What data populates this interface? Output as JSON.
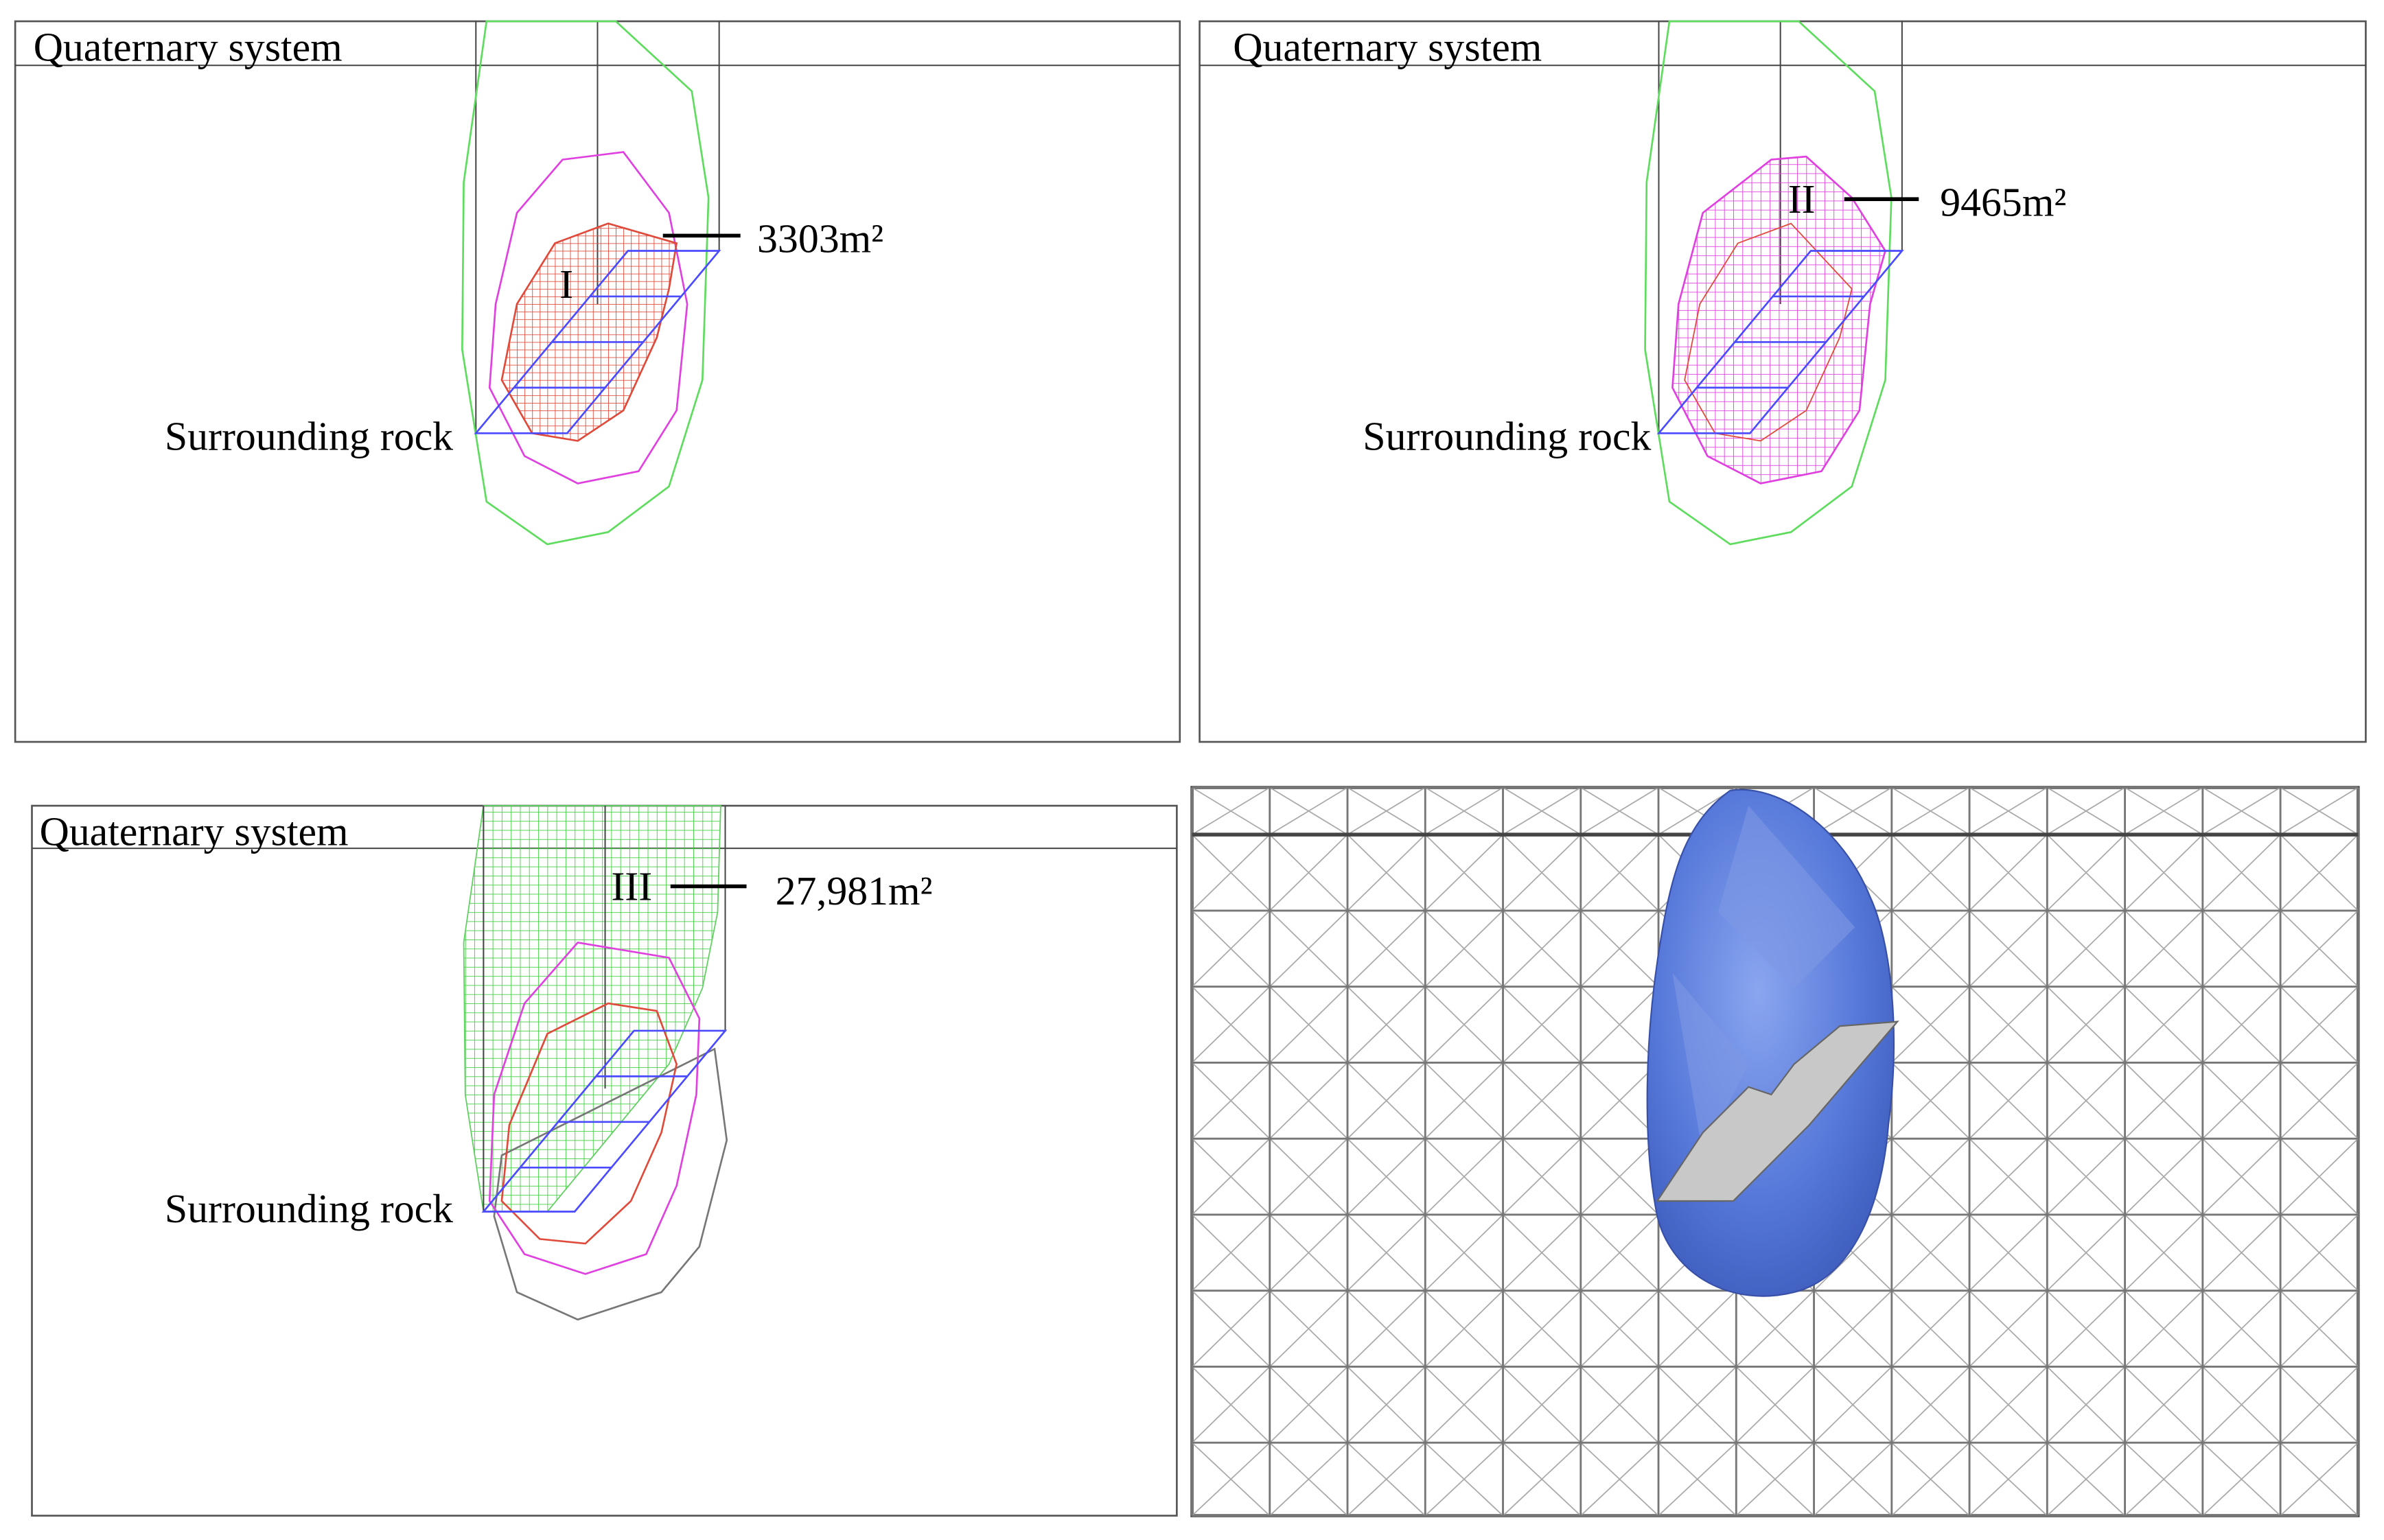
{
  "panels": [
    {
      "layer": "Quaternary system",
      "zone": "I",
      "area": "3303m²",
      "rock": "Surrounding rock"
    },
    {
      "layer": "Quaternary system",
      "zone": "II",
      "area": "9465m²",
      "rock": "Surrounding rock"
    },
    {
      "layer": "Quaternary system",
      "zone": "III",
      "area": "27,981m²",
      "rock": "Surrounding rock"
    }
  ]
}
